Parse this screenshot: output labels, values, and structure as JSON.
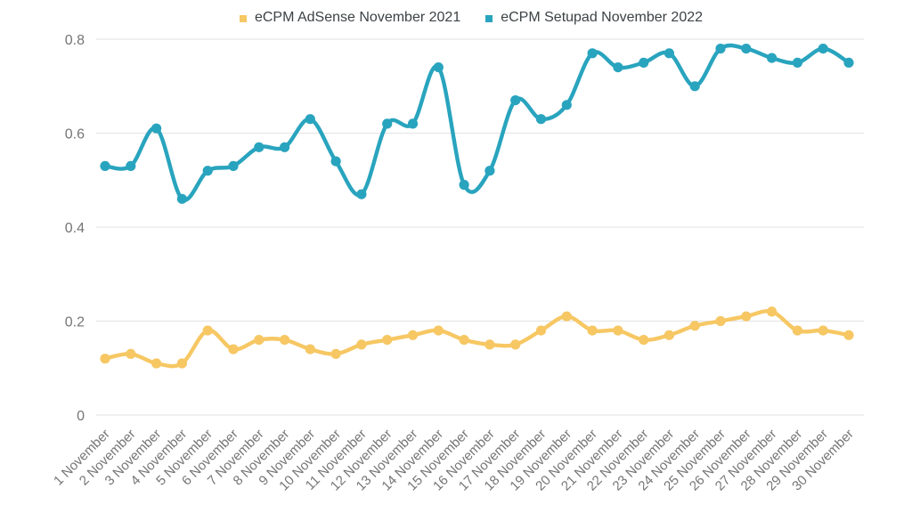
{
  "legend": {
    "items": [
      {
        "label": "eCPM AdSense November 2021",
        "color": "#f6c763"
      },
      {
        "label": "eCPM Setupad November 2022",
        "color": "#29a4be"
      }
    ]
  },
  "chart_data": {
    "type": "line",
    "title": "",
    "xlabel": "",
    "ylabel": "",
    "categories": [
      "1 November",
      "2 November",
      "3 November",
      "4 November",
      "5 November",
      "6 November",
      "7 November",
      "8 November",
      "9 November",
      "10 November",
      "11 November",
      "12 November",
      "13 November",
      "14 November",
      "15 November",
      "16 November",
      "17 November",
      "18 November",
      "19 November",
      "20 November",
      "21 November",
      "22 November",
      "23 November",
      "24 November",
      "25 November",
      "26 November",
      "27 November",
      "28 November",
      "29 November",
      "30 November"
    ],
    "series": [
      {
        "name": "eCPM AdSense November 2021",
        "color": "#f6c763",
        "values": [
          0.12,
          0.13,
          0.11,
          0.11,
          0.18,
          0.14,
          0.16,
          0.16,
          0.14,
          0.13,
          0.15,
          0.16,
          0.17,
          0.18,
          0.16,
          0.15,
          0.15,
          0.18,
          0.21,
          0.18,
          0.18,
          0.16,
          0.17,
          0.19,
          0.2,
          0.21,
          0.22,
          0.18,
          0.18,
          0.17
        ]
      },
      {
        "name": "eCPM Setupad November 2022",
        "color": "#29a4be",
        "values": [
          0.53,
          0.53,
          0.61,
          0.46,
          0.52,
          0.53,
          0.57,
          0.57,
          0.63,
          0.54,
          0.47,
          0.62,
          0.62,
          0.74,
          0.49,
          0.52,
          0.67,
          0.63,
          0.66,
          0.77,
          0.74,
          0.75,
          0.77,
          0.7,
          0.78,
          0.78,
          0.76,
          0.75,
          0.78,
          0.75
        ]
      }
    ],
    "y_ticks": [
      "0",
      "0.2",
      "0.4",
      "0.6",
      "0.8"
    ],
    "ylim": [
      0,
      0.8
    ],
    "grid": "horizontal",
    "legend_position": "top",
    "smooth": true,
    "marker": "circle",
    "axis_label_color": "#757575",
    "gridline_color": "#e2e2e2"
  }
}
